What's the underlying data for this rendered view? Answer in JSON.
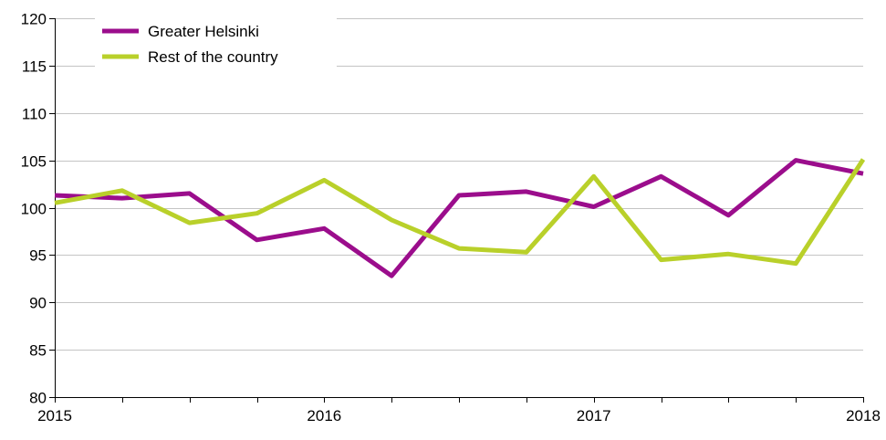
{
  "chart_data": {
    "type": "line",
    "title": "",
    "xlabel": "",
    "ylabel": "",
    "ylim": [
      80,
      120
    ],
    "yticks": [
      80,
      85,
      90,
      95,
      100,
      105,
      110,
      115,
      120
    ],
    "xlim": [
      2015,
      2018
    ],
    "x_tick_labels": [
      "2015",
      "2016",
      "2017",
      "2018"
    ],
    "x": [
      2015,
      2015.25,
      2015.5,
      2015.75,
      2016,
      2016.25,
      2016.5,
      2016.75,
      2017,
      2017.25,
      2017.5,
      2017.75,
      2018
    ],
    "grid": "horizontal",
    "legend_position": "top-left",
    "series": [
      {
        "name": "Greater Helsinki",
        "color": "#9b0d8c",
        "values": [
          101.3,
          101.0,
          101.5,
          96.6,
          97.8,
          92.8,
          101.3,
          101.7,
          100.1,
          103.3,
          99.2,
          105.0,
          103.6
        ]
      },
      {
        "name": "Rest of the country",
        "color": "#b9d02a",
        "values": [
          100.5,
          101.8,
          98.4,
          99.4,
          102.9,
          98.7,
          95.7,
          95.3,
          103.3,
          94.5,
          95.1,
          94.1,
          105.1
        ]
      }
    ]
  }
}
